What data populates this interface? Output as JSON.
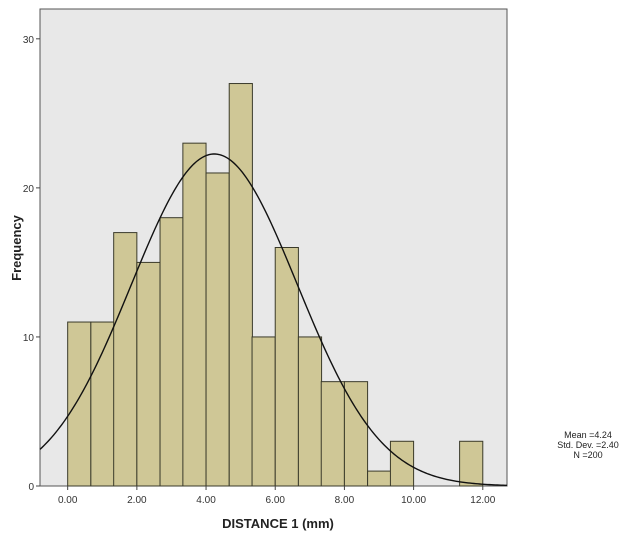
{
  "chart_data": {
    "type": "bar",
    "xlabel": "DISTANCE 1 (mm)",
    "ylabel": "Frequency",
    "xlim": [
      -0.8,
      12.7
    ],
    "ylim": [
      0,
      32
    ],
    "x_ticks": [
      "0.00",
      "2.00",
      "4.00",
      "6.00",
      "8.00",
      "10.00",
      "12.00"
    ],
    "x_tick_values": [
      0,
      2,
      4,
      6,
      8,
      10,
      12
    ],
    "y_ticks": [
      "0",
      "10",
      "20",
      "30"
    ],
    "y_tick_values": [
      0,
      10,
      20,
      30
    ],
    "bin_width": 0.67,
    "bins": [
      {
        "start": 0.0,
        "count": 11
      },
      {
        "start": 0.67,
        "count": 11
      },
      {
        "start": 1.33,
        "count": 17
      },
      {
        "start": 2.0,
        "count": 15
      },
      {
        "start": 2.67,
        "count": 18
      },
      {
        "start": 3.33,
        "count": 23
      },
      {
        "start": 4.0,
        "count": 21
      },
      {
        "start": 4.67,
        "count": 27
      },
      {
        "start": 5.33,
        "count": 10
      },
      {
        "start": 6.0,
        "count": 16
      },
      {
        "start": 6.67,
        "count": 10
      },
      {
        "start": 7.33,
        "count": 7
      },
      {
        "start": 8.0,
        "count": 7
      },
      {
        "start": 8.67,
        "count": 1
      },
      {
        "start": 9.33,
        "count": 3
      },
      {
        "start": 10.0,
        "count": 0
      },
      {
        "start": 10.67,
        "count": 0
      },
      {
        "start": 11.33,
        "count": 3
      }
    ],
    "normal_curve": {
      "mean": 4.24,
      "std": 2.4,
      "n": 200
    },
    "grid": false,
    "colors": {
      "bar_fill": "#cfc796",
      "bar_stroke": "#3a3a2a",
      "plot_bg": "#e8e8e8",
      "curve": "#111111"
    },
    "stats_labels": {
      "mean": "Mean =4.24",
      "std": "Std. Dev. =2.40",
      "n": "N =200"
    }
  }
}
